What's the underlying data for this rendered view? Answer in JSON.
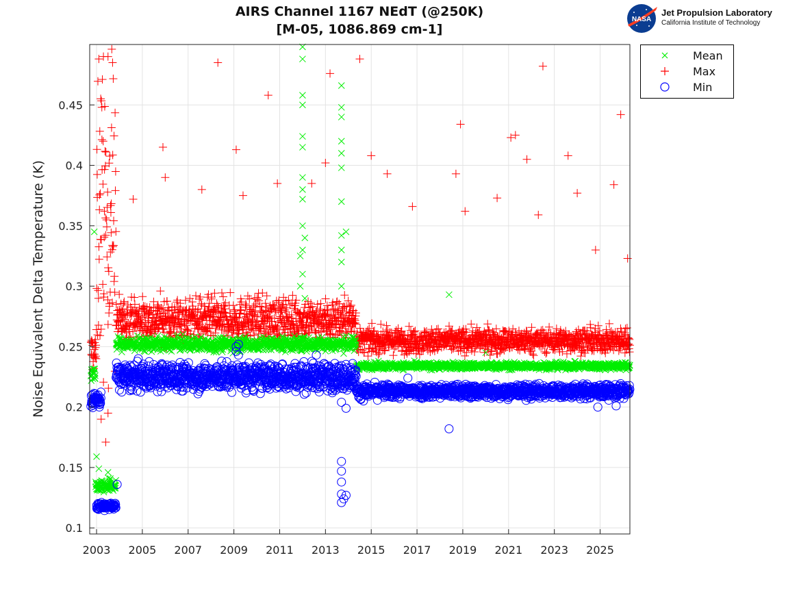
{
  "chart_data": {
    "type": "scatter",
    "title": "AIRS Channel 1167 NEdT (@250K)",
    "subtitle": "[M-05, 1086.869 cm-1]",
    "xlabel": "",
    "ylabel": "Noise Equivalent Delta Temperature (K)",
    "xlim": [
      2002.7,
      2026.3
    ],
    "ylim": [
      0.095,
      0.5
    ],
    "x_ticks": [
      2003,
      2005,
      2007,
      2009,
      2011,
      2013,
      2015,
      2017,
      2019,
      2021,
      2023,
      2025
    ],
    "x_tick_labels": [
      "2003",
      "2005",
      "2007",
      "2009",
      "2011",
      "2013",
      "2015",
      "2017",
      "2019",
      "2021",
      "2023",
      "2025"
    ],
    "y_ticks": [
      0.1,
      0.15,
      0.2,
      0.25,
      0.3,
      0.35,
      0.4,
      0.45
    ],
    "y_tick_labels": [
      "0.1",
      "0.15",
      "0.2",
      "0.25",
      "0.3",
      "0.35",
      "0.4",
      "0.45"
    ],
    "grid": true,
    "legend_position": "outside-top-right",
    "series": [
      {
        "name": "Mean",
        "marker": "x",
        "color": "#00ee00",
        "segments": [
          {
            "x_start": 2002.75,
            "x_end": 2002.95,
            "level": 0.228,
            "spread": 0.004
          },
          {
            "x_start": 2002.95,
            "x_end": 2003.85,
            "level": 0.135,
            "spread": 0.004
          },
          {
            "x_start": 2003.85,
            "x_end": 2014.35,
            "level": 0.252,
            "spread": 0.004
          },
          {
            "x_start": 2014.35,
            "x_end": 2026.3,
            "level": 0.234,
            "spread": 0.002
          }
        ],
        "outliers": [
          [
            2002.9,
            0.345
          ],
          [
            2003.0,
            0.159
          ],
          [
            2003.1,
            0.149
          ],
          [
            2003.5,
            0.146
          ],
          [
            2012.0,
            0.498
          ],
          [
            2012.0,
            0.488
          ],
          [
            2012.0,
            0.458
          ],
          [
            2012.0,
            0.45
          ],
          [
            2012.0,
            0.424
          ],
          [
            2012.0,
            0.415
          ],
          [
            2012.0,
            0.39
          ],
          [
            2012.0,
            0.38
          ],
          [
            2012.0,
            0.372
          ],
          [
            2012.0,
            0.35
          ],
          [
            2012.0,
            0.33
          ],
          [
            2012.0,
            0.31
          ],
          [
            2011.9,
            0.325
          ],
          [
            2011.9,
            0.3
          ],
          [
            2012.1,
            0.34
          ],
          [
            2012.1,
            0.29
          ],
          [
            2013.7,
            0.466
          ],
          [
            2013.7,
            0.448
          ],
          [
            2013.7,
            0.44
          ],
          [
            2013.7,
            0.42
          ],
          [
            2013.7,
            0.41
          ],
          [
            2013.7,
            0.398
          ],
          [
            2013.7,
            0.37
          ],
          [
            2013.7,
            0.342
          ],
          [
            2013.7,
            0.33
          ],
          [
            2013.7,
            0.32
          ],
          [
            2013.7,
            0.3
          ],
          [
            2013.9,
            0.345
          ],
          [
            2018.4,
            0.293
          ],
          [
            2020.0,
            0.245
          ]
        ]
      },
      {
        "name": "Max",
        "marker": "+",
        "color": "#ff0000",
        "segments": [
          {
            "x_start": 2002.75,
            "x_end": 2003.0,
            "level": 0.245,
            "spread": 0.012
          },
          {
            "x_start": 2003.0,
            "x_end": 2003.85,
            "level": 0.36,
            "spread": 0.09
          },
          {
            "x_start": 2003.85,
            "x_end": 2014.35,
            "level": 0.272,
            "spread": 0.013
          },
          {
            "x_start": 2014.35,
            "x_end": 2026.3,
            "level": 0.255,
            "spread": 0.007
          }
        ],
        "outliers": [
          [
            2003.1,
            0.488
          ],
          [
            2003.3,
            0.49
          ],
          [
            2003.5,
            0.49
          ],
          [
            2003.7,
            0.485
          ],
          [
            2003.4,
            0.171
          ],
          [
            2003.5,
            0.195
          ],
          [
            2003.2,
            0.19
          ],
          [
            2008.3,
            0.485
          ],
          [
            2010.5,
            0.458
          ],
          [
            2013.2,
            0.476
          ],
          [
            2014.5,
            0.488
          ],
          [
            2005.9,
            0.415
          ],
          [
            2009.1,
            0.413
          ],
          [
            2018.9,
            0.434
          ],
          [
            2021.1,
            0.423
          ],
          [
            2021.3,
            0.425
          ],
          [
            2021.8,
            0.405
          ],
          [
            2022.5,
            0.482
          ],
          [
            2023.6,
            0.408
          ],
          [
            2025.9,
            0.442
          ],
          [
            2025.6,
            0.384
          ],
          [
            2004.6,
            0.372
          ],
          [
            2006.0,
            0.39
          ],
          [
            2007.6,
            0.38
          ],
          [
            2009.4,
            0.375
          ],
          [
            2010.9,
            0.385
          ],
          [
            2012.4,
            0.385
          ],
          [
            2013.0,
            0.402
          ],
          [
            2015.0,
            0.408
          ],
          [
            2015.7,
            0.393
          ],
          [
            2016.8,
            0.366
          ],
          [
            2018.7,
            0.393
          ],
          [
            2019.1,
            0.362
          ],
          [
            2020.5,
            0.373
          ],
          [
            2022.3,
            0.359
          ],
          [
            2024.0,
            0.377
          ],
          [
            2024.8,
            0.33
          ],
          [
            2026.2,
            0.323
          ]
        ]
      },
      {
        "name": "Min",
        "marker": "o",
        "color": "#0000ff",
        "segments": [
          {
            "x_start": 2002.75,
            "x_end": 2003.2,
            "level": 0.206,
            "spread": 0.005
          },
          {
            "x_start": 2003.0,
            "x_end": 2003.85,
            "level": 0.118,
            "spread": 0.002
          },
          {
            "x_start": 2003.85,
            "x_end": 2014.35,
            "level": 0.225,
            "spread": 0.008
          },
          {
            "x_start": 2014.35,
            "x_end": 2026.3,
            "level": 0.213,
            "spread": 0.004
          }
        ],
        "outliers": [
          [
            2003.9,
            0.136
          ],
          [
            2009.1,
            0.25
          ],
          [
            2009.1,
            0.246
          ],
          [
            2009.2,
            0.252
          ],
          [
            2009.2,
            0.243
          ],
          [
            2012.6,
            0.243
          ],
          [
            2013.7,
            0.155
          ],
          [
            2013.7,
            0.147
          ],
          [
            2013.7,
            0.138
          ],
          [
            2013.7,
            0.128
          ],
          [
            2013.7,
            0.121
          ],
          [
            2013.8,
            0.124
          ],
          [
            2013.9,
            0.127
          ],
          [
            2013.7,
            0.204
          ],
          [
            2013.9,
            0.199
          ],
          [
            2018.4,
            0.182
          ],
          [
            2024.9,
            0.2
          ],
          [
            2025.7,
            0.201
          ],
          [
            2016.6,
            0.224
          ]
        ]
      }
    ]
  },
  "logo": {
    "emblem_text": "NASA",
    "name": "Jet Propulsion Laboratory",
    "subtitle": "California Institute of Technology"
  }
}
